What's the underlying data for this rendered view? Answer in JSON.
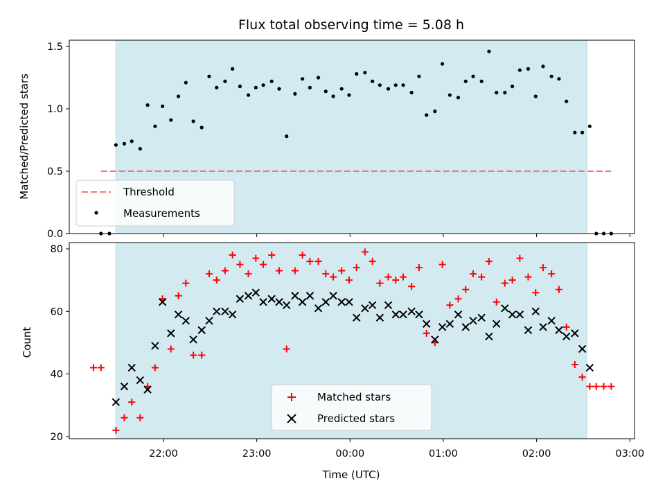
{
  "chart_data": [
    {
      "type": "scatter",
      "title": "Flux total observing time = 5.08 h",
      "ylabel": "Matched/Predicted stars",
      "ylim": [
        0,
        1.55
      ],
      "yticks": [
        "0.0",
        "0.5",
        "1.0",
        "1.5"
      ],
      "shaded_region": {
        "start_h": 21.49,
        "end_h": 26.54,
        "color": "#d3eaf0"
      },
      "legend": {
        "position": "lower-left",
        "entries": [
          "Threshold",
          "Measurements"
        ]
      },
      "threshold": {
        "name": "Threshold",
        "value": 0.5,
        "x_start_h": 21.33,
        "x_end_h": 26.8,
        "color": "#f07878"
      },
      "series": [
        {
          "name": "Measurements",
          "color": "#000000",
          "points": [
            [
              21.33,
              0.0
            ],
            [
              21.42,
              0.0
            ],
            [
              21.49,
              0.71
            ],
            [
              21.58,
              0.72
            ],
            [
              21.66,
              0.74
            ],
            [
              21.75,
              0.68
            ],
            [
              21.83,
              1.03
            ],
            [
              21.91,
              0.86
            ],
            [
              21.99,
              1.02
            ],
            [
              22.08,
              0.91
            ],
            [
              22.16,
              1.1
            ],
            [
              22.24,
              1.21
            ],
            [
              22.32,
              0.9
            ],
            [
              22.41,
              0.85
            ],
            [
              22.49,
              1.26
            ],
            [
              22.57,
              1.17
            ],
            [
              22.66,
              1.22
            ],
            [
              22.74,
              1.32
            ],
            [
              22.82,
              1.18
            ],
            [
              22.91,
              1.11
            ],
            [
              22.99,
              1.17
            ],
            [
              23.07,
              1.19
            ],
            [
              23.16,
              1.22
            ],
            [
              23.24,
              1.16
            ],
            [
              23.32,
              0.78
            ],
            [
              23.41,
              1.12
            ],
            [
              23.49,
              1.24
            ],
            [
              23.57,
              1.17
            ],
            [
              23.66,
              1.25
            ],
            [
              23.74,
              1.14
            ],
            [
              23.82,
              1.1
            ],
            [
              23.91,
              1.16
            ],
            [
              23.99,
              1.11
            ],
            [
              24.07,
              1.28
            ],
            [
              24.16,
              1.29
            ],
            [
              24.24,
              1.22
            ],
            [
              24.32,
              1.19
            ],
            [
              24.41,
              1.16
            ],
            [
              24.49,
              1.19
            ],
            [
              24.57,
              1.19
            ],
            [
              24.66,
              1.13
            ],
            [
              24.74,
              1.26
            ],
            [
              24.82,
              0.95
            ],
            [
              24.91,
              0.98
            ],
            [
              24.99,
              1.36
            ],
            [
              25.07,
              1.11
            ],
            [
              25.16,
              1.09
            ],
            [
              25.24,
              1.22
            ],
            [
              25.32,
              1.26
            ],
            [
              25.41,
              1.22
            ],
            [
              25.49,
              1.46
            ],
            [
              25.57,
              1.13
            ],
            [
              25.66,
              1.13
            ],
            [
              25.74,
              1.18
            ],
            [
              25.82,
              1.31
            ],
            [
              25.91,
              1.32
            ],
            [
              25.99,
              1.1
            ],
            [
              26.07,
              1.34
            ],
            [
              26.16,
              1.26
            ],
            [
              26.24,
              1.24
            ],
            [
              26.32,
              1.06
            ],
            [
              26.41,
              0.81
            ],
            [
              26.49,
              0.81
            ],
            [
              26.57,
              0.86
            ],
            [
              26.64,
              0.0
            ],
            [
              26.72,
              0.0
            ],
            [
              26.8,
              0.0
            ]
          ]
        }
      ]
    },
    {
      "type": "scatter",
      "xlabel": "Time (UTC)",
      "ylabel": "Count",
      "xlim_h": [
        20.99,
        27.05
      ],
      "ylim": [
        19.3,
        82
      ],
      "xticks": [
        {
          "h": 22,
          "label": "22:00"
        },
        {
          "h": 23,
          "label": "23:00"
        },
        {
          "h": 24,
          "label": "00:00"
        },
        {
          "h": 25,
          "label": "01:00"
        },
        {
          "h": 26,
          "label": "02:00"
        },
        {
          "h": 27,
          "label": "03:00"
        }
      ],
      "yticks": [
        "20",
        "40",
        "60",
        "80"
      ],
      "shaded_region": {
        "start_h": 21.49,
        "end_h": 26.54,
        "color": "#d3eaf0"
      },
      "legend": {
        "position": "lower-center",
        "entries": [
          "Matched stars",
          "Predicted stars"
        ]
      },
      "series": [
        {
          "name": "Matched stars",
          "marker": "plus",
          "color": "#ff0000",
          "points": [
            [
              21.25,
              42
            ],
            [
              21.33,
              42
            ],
            [
              21.49,
              22
            ],
            [
              21.58,
              26
            ],
            [
              21.66,
              31
            ],
            [
              21.75,
              26
            ],
            [
              21.83,
              36
            ],
            [
              21.91,
              42
            ],
            [
              21.99,
              64
            ],
            [
              22.08,
              48
            ],
            [
              22.16,
              65
            ],
            [
              22.24,
              69
            ],
            [
              22.32,
              46
            ],
            [
              22.41,
              46
            ],
            [
              22.49,
              72
            ],
            [
              22.57,
              70
            ],
            [
              22.66,
              73
            ],
            [
              22.74,
              78
            ],
            [
              22.82,
              75
            ],
            [
              22.91,
              72
            ],
            [
              22.99,
              77
            ],
            [
              23.07,
              75
            ],
            [
              23.16,
              78
            ],
            [
              23.24,
              73
            ],
            [
              23.32,
              48
            ],
            [
              23.41,
              73
            ],
            [
              23.49,
              78
            ],
            [
              23.57,
              76
            ],
            [
              23.66,
              76
            ],
            [
              23.74,
              72
            ],
            [
              23.82,
              71
            ],
            [
              23.91,
              73
            ],
            [
              23.99,
              70
            ],
            [
              24.07,
              74
            ],
            [
              24.16,
              79
            ],
            [
              24.24,
              76
            ],
            [
              24.32,
              69
            ],
            [
              24.41,
              71
            ],
            [
              24.49,
              70
            ],
            [
              24.57,
              71
            ],
            [
              24.66,
              68
            ],
            [
              24.74,
              74
            ],
            [
              24.82,
              53
            ],
            [
              24.91,
              50
            ],
            [
              24.99,
              75
            ],
            [
              25.07,
              62
            ],
            [
              25.16,
              64
            ],
            [
              25.24,
              67
            ],
            [
              25.32,
              72
            ],
            [
              25.41,
              71
            ],
            [
              25.49,
              76
            ],
            [
              25.57,
              63
            ],
            [
              25.66,
              69
            ],
            [
              25.74,
              70
            ],
            [
              25.82,
              77
            ],
            [
              25.91,
              71
            ],
            [
              25.99,
              66
            ],
            [
              26.07,
              74
            ],
            [
              26.16,
              72
            ],
            [
              26.24,
              67
            ],
            [
              26.32,
              55
            ],
            [
              26.41,
              43
            ],
            [
              26.49,
              39
            ],
            [
              26.57,
              36
            ],
            [
              26.64,
              36
            ],
            [
              26.72,
              36
            ],
            [
              26.8,
              36
            ]
          ]
        },
        {
          "name": "Predicted stars",
          "marker": "x",
          "color": "#000000",
          "points": [
            [
              21.49,
              31
            ],
            [
              21.58,
              36
            ],
            [
              21.66,
              42
            ],
            [
              21.75,
              38
            ],
            [
              21.83,
              35
            ],
            [
              21.91,
              49
            ],
            [
              21.99,
              63
            ],
            [
              22.08,
              53
            ],
            [
              22.16,
              59
            ],
            [
              22.24,
              57
            ],
            [
              22.32,
              51
            ],
            [
              22.41,
              54
            ],
            [
              22.49,
              57
            ],
            [
              22.57,
              60
            ],
            [
              22.66,
              60
            ],
            [
              22.74,
              59
            ],
            [
              22.82,
              64
            ],
            [
              22.91,
              65
            ],
            [
              22.99,
              66
            ],
            [
              23.07,
              63
            ],
            [
              23.16,
              64
            ],
            [
              23.24,
              63
            ],
            [
              23.32,
              62
            ],
            [
              23.41,
              65
            ],
            [
              23.49,
              63
            ],
            [
              23.57,
              65
            ],
            [
              23.66,
              61
            ],
            [
              23.74,
              63
            ],
            [
              23.82,
              65
            ],
            [
              23.91,
              63
            ],
            [
              23.99,
              63
            ],
            [
              24.07,
              58
            ],
            [
              24.16,
              61
            ],
            [
              24.24,
              62
            ],
            [
              24.32,
              58
            ],
            [
              24.41,
              62
            ],
            [
              24.49,
              59
            ],
            [
              24.57,
              59
            ],
            [
              24.66,
              60
            ],
            [
              24.74,
              59
            ],
            [
              24.82,
              56
            ],
            [
              24.91,
              51
            ],
            [
              24.99,
              55
            ],
            [
              25.07,
              56
            ],
            [
              25.16,
              59
            ],
            [
              25.24,
              55
            ],
            [
              25.32,
              57
            ],
            [
              25.41,
              58
            ],
            [
              25.49,
              52
            ],
            [
              25.57,
              56
            ],
            [
              25.66,
              61
            ],
            [
              25.74,
              59
            ],
            [
              25.82,
              59
            ],
            [
              25.91,
              54
            ],
            [
              25.99,
              60
            ],
            [
              26.07,
              55
            ],
            [
              26.16,
              57
            ],
            [
              26.24,
              54
            ],
            [
              26.32,
              52
            ],
            [
              26.41,
              53
            ],
            [
              26.49,
              48
            ],
            [
              26.57,
              42
            ]
          ]
        }
      ]
    }
  ]
}
